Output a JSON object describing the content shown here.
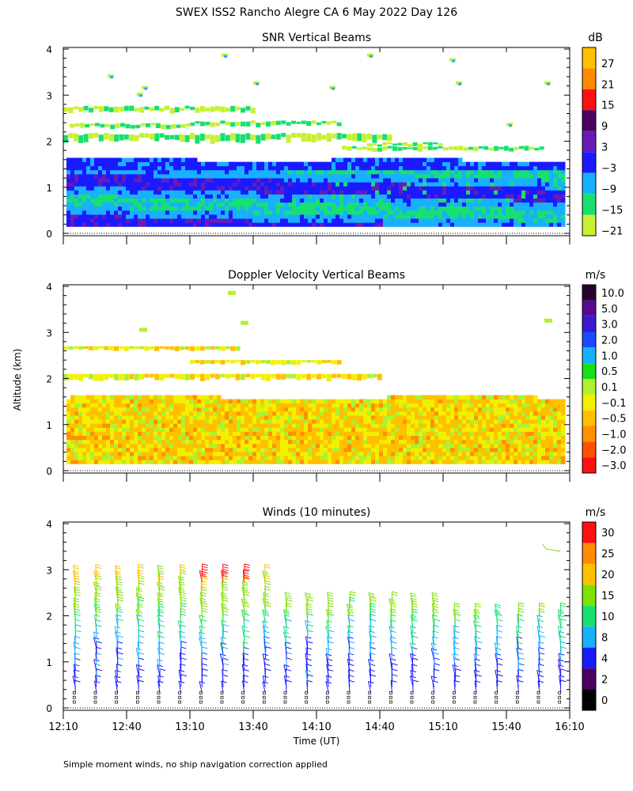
{
  "figure_title": "SWEX ISS2 Rancho Alegre CA   6 May 2022 Day 126",
  "ylabel": "Altitude (km)",
  "xlabel": "Time (UT)",
  "footnote": "Simple moment winds, no ship navigation correction applied",
  "x_ticks": [
    "12:10",
    "12:40",
    "13:10",
    "13:40",
    "14:10",
    "14:40",
    "15:10",
    "15:40",
    "16:10"
  ],
  "y_ticks": [
    "0",
    "1",
    "2",
    "3",
    "4"
  ],
  "chart_data": [
    {
      "type": "heatmap",
      "title": "SNR Vertical Beams",
      "ylabel": "Altitude (km)",
      "xlim": [
        "12:10",
        "16:10"
      ],
      "ylim": [
        0,
        4
      ],
      "colorbar": {
        "unit": "dB",
        "ticks": [
          "27",
          "21",
          "15",
          "9",
          "3",
          "−3",
          "−9",
          "−15",
          "−21"
        ],
        "colors": [
          "#ffc000",
          "#ff8c00",
          "#ff1010",
          "#4a0060",
          "#6a1ab8",
          "#1a1aff",
          "#18b0ff",
          "#18e070",
          "#c8f030"
        ]
      },
      "summary": "Returns mostly between 0.15 and 1.6 km with -9 to -3 dB, scattered cloud/layer echoes up to ~2.7 km, sparse echoes near 3-4 km"
    },
    {
      "type": "heatmap",
      "title": "Doppler Velocity Vertical Beams",
      "ylabel": "Altitude (km)",
      "xlim": [
        "12:10",
        "16:10"
      ],
      "ylim": [
        0,
        4
      ],
      "colorbar": {
        "unit": "m/s",
        "ticks": [
          "10.0",
          "5.0",
          "3.0",
          "2.0",
          "1.0",
          "0.5",
          "0.1",
          "−0.1",
          "−0.5",
          "−1.0",
          "−2.0",
          "−3.0"
        ],
        "colors": [
          "#2a0030",
          "#5a0a90",
          "#3a18d0",
          "#1a4aff",
          "#18b0ff",
          "#18e018",
          "#b0f030",
          "#f0f000",
          "#ffc000",
          "#ff9000",
          "#ff5000",
          "#ff1010"
        ]
      },
      "summary": "Velocities mostly between -0.5 and 0.1 m/s below 1.6 km"
    },
    {
      "type": "scatter",
      "title": "Winds (10 minutes)",
      "ylabel": "Altitude (km)",
      "xlabel": "Time (UT)",
      "xlim": [
        "12:10",
        "16:10"
      ],
      "ylim": [
        0,
        4
      ],
      "colorbar": {
        "unit": "m/s",
        "ticks": [
          "30",
          "25",
          "20",
          "15",
          "10",
          "8",
          "4",
          "2",
          "0"
        ],
        "colors": [
          "#ff1010",
          "#ff8c00",
          "#ffc000",
          "#80e000",
          "#18e070",
          "#18b0ff",
          "#1a1aff",
          "#4a0060",
          "#000000"
        ]
      },
      "summary": "Wind barbs every 10 minutes from 0.2 to ~3 km; speeds 4-10 m/s below 2 km, 10-20 m/s aloft, up to ~30 m/s near 2.9 km around 13:10-13:30"
    }
  ]
}
